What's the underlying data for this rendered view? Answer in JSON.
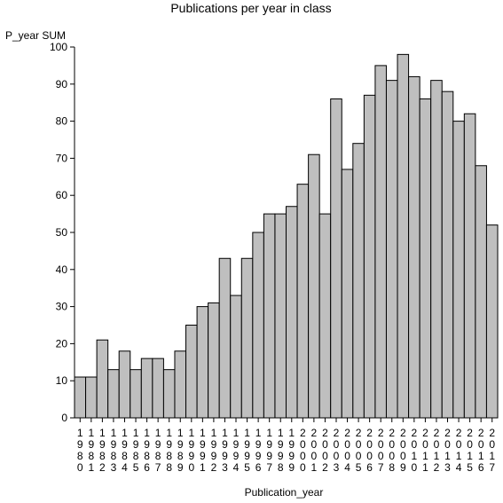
{
  "chart_data": {
    "type": "bar",
    "title": "Publications per year in class",
    "xlabel": "Publication_year",
    "ylabel": "P_year SUM",
    "ylim": [
      0,
      100
    ],
    "yticks": [
      0,
      10,
      20,
      30,
      40,
      50,
      60,
      70,
      80,
      90,
      100
    ],
    "grid": false,
    "legend": "none",
    "bar_color": "#bfbfbf",
    "categories": [
      "1980",
      "1981",
      "1982",
      "1983",
      "1984",
      "1985",
      "1986",
      "1987",
      "1988",
      "1989",
      "1990",
      "1991",
      "1992",
      "1993",
      "1994",
      "1995",
      "1996",
      "1997",
      "1998",
      "1999",
      "2000",
      "2001",
      "2002",
      "2003",
      "2004",
      "2005",
      "2006",
      "2007",
      "2008",
      "2009",
      "2010",
      "2011",
      "2012",
      "2013",
      "2014",
      "2015",
      "2016",
      "2017"
    ],
    "values": [
      11,
      11,
      21,
      13,
      18,
      13,
      16,
      16,
      13,
      18,
      25,
      30,
      31,
      43,
      33,
      43,
      50,
      55,
      55,
      57,
      63,
      71,
      55,
      86,
      67,
      74,
      87,
      95,
      91,
      98,
      92,
      86,
      91,
      88,
      80,
      82,
      68,
      52
    ]
  }
}
